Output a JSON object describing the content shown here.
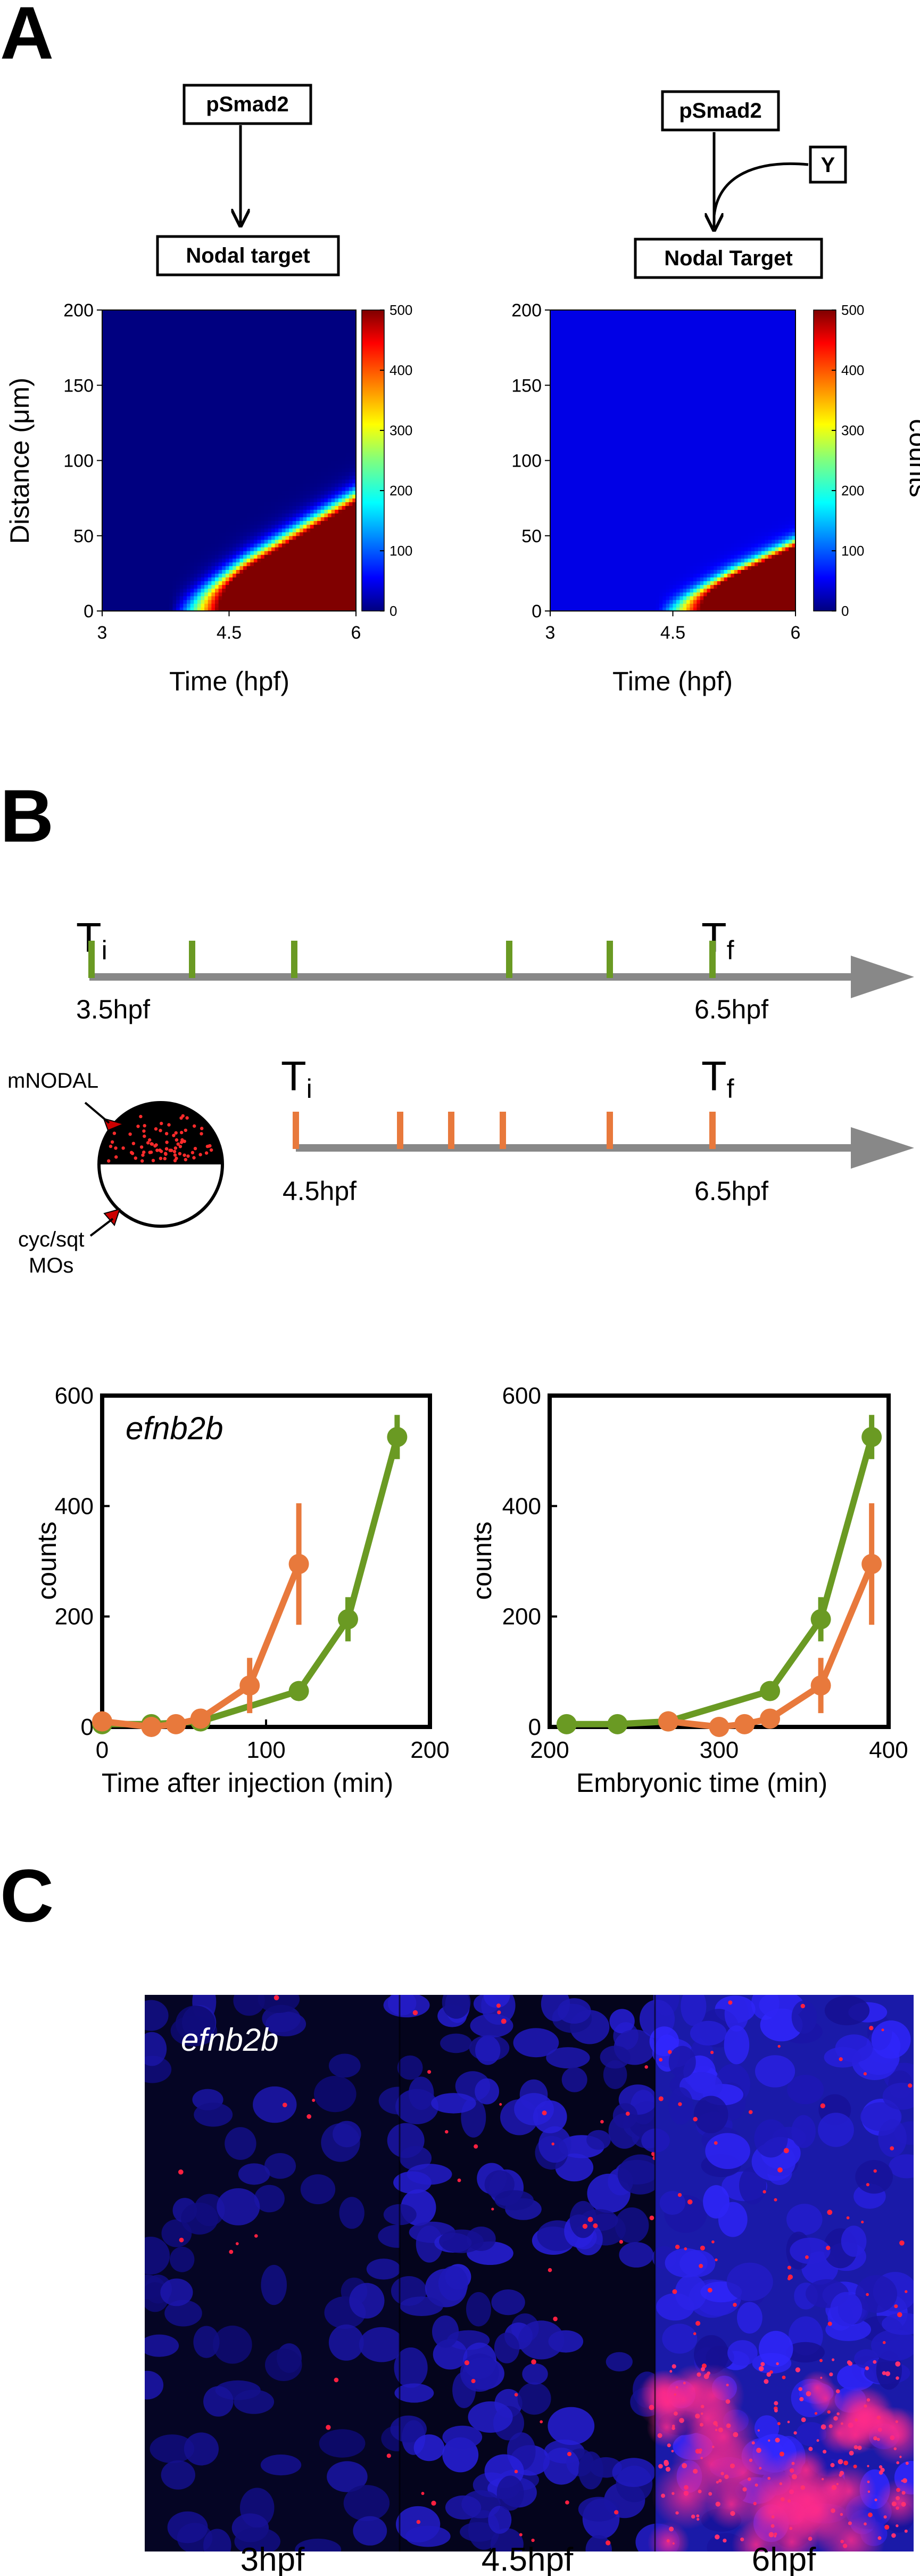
{
  "panels": {
    "a": "A",
    "b": "B",
    "c": "C"
  },
  "panel_a": {
    "left_diagram": {
      "top_box": "pSmad2",
      "bottom_box": "Nodal target"
    },
    "right_diagram": {
      "top_box": "pSmad2",
      "side_box": "Y",
      "bottom_box": "Nodal Target"
    },
    "ylabel": "Distance (μm)",
    "colorbar_label": "counts"
  },
  "panel_b": {
    "timeline_green": {
      "ti": "T",
      "ti_sub": "i",
      "tf": "T",
      "tf_sub": "f",
      "start": "3.5hpf",
      "end": "6.5hpf",
      "color": "#6a9a23"
    },
    "timeline_orange": {
      "ti": "T",
      "ti_sub": "i",
      "tf": "T",
      "tf_sub": "f",
      "start": "4.5hpf",
      "end": "6.5hpf",
      "color": "#e8793c"
    },
    "schematic": {
      "label1": "mNODAL",
      "label2a": "cyc/sqt",
      "label2b": "MOs"
    }
  },
  "panel_c": {
    "gene": "efnb2b",
    "labels": [
      "3hpf",
      "4.5hpf",
      "6hpf"
    ]
  },
  "chart_data": [
    {
      "type": "heatmap",
      "title": "Nodal target",
      "xlabel": "Time (hpf)",
      "ylabel": "Distance (μm)",
      "xlim": [
        3,
        6
      ],
      "ylim": [
        0,
        200
      ],
      "xticks": [
        "3",
        "4.5",
        "6"
      ],
      "yticks": [
        "0",
        "50",
        "100",
        "150",
        "200"
      ],
      "colorbar": {
        "min": 0,
        "max": 500,
        "ticks": [
          "0",
          "100",
          "200",
          "300",
          "400",
          "500"
        ],
        "colormap": "jet"
      },
      "model": {
        "front_start_hpf": 3.8,
        "front_speed_um_per_hpf": 34,
        "width_um": 18
      }
    },
    {
      "type": "heatmap",
      "title": "Nodal Target",
      "xlabel": "Time (hpf)",
      "ylabel": "Distance (μm)",
      "xlim": [
        3,
        6
      ],
      "ylim": [
        0,
        200
      ],
      "xticks": [
        "3",
        "4.5",
        "6"
      ],
      "yticks": [
        "0",
        "50",
        "100",
        "150",
        "200"
      ],
      "colorbar": {
        "min": 0,
        "max": 500,
        "ticks": [
          "0",
          "100",
          "200",
          "300",
          "400",
          "500"
        ],
        "colormap": "jet",
        "label": "counts"
      },
      "model": {
        "front_start_hpf": 4.3,
        "front_speed_um_per_hpf": 26,
        "width_um": 12
      }
    },
    {
      "type": "line",
      "gene": "efnb2b",
      "xlabel": "Time after injection (min)",
      "ylabel": "counts",
      "xlim": [
        0,
        200
      ],
      "ylim": [
        0,
        600
      ],
      "xticks": [
        0,
        100,
        200
      ],
      "yticks": [
        0,
        200,
        400,
        600
      ],
      "series": [
        {
          "name": "injection 3.5hpf",
          "color": "#6a9a23",
          "x": [
            0,
            30,
            60,
            120,
            150,
            180
          ],
          "y": [
            5,
            5,
            10,
            65,
            195,
            525
          ],
          "err": [
            10,
            8,
            10,
            15,
            40,
            40
          ]
        },
        {
          "name": "injection 4.5hpf",
          "color": "#e8793c",
          "x": [
            0,
            30,
            45,
            60,
            90,
            120
          ],
          "y": [
            10,
            0,
            5,
            15,
            75,
            295
          ],
          "err": [
            10,
            8,
            8,
            10,
            50,
            110
          ]
        }
      ]
    },
    {
      "type": "line",
      "xlabel": "Embryonic time (min)",
      "ylabel": "counts",
      "xlim": [
        200,
        400
      ],
      "ylim": [
        0,
        600
      ],
      "xticks": [
        200,
        300,
        400
      ],
      "yticks": [
        0,
        200,
        400,
        600
      ],
      "series": [
        {
          "name": "injection 3.5hpf",
          "color": "#6a9a23",
          "x": [
            210,
            240,
            270,
            330,
            360,
            390
          ],
          "y": [
            5,
            5,
            10,
            65,
            195,
            525
          ],
          "err": [
            10,
            8,
            10,
            15,
            40,
            40
          ]
        },
        {
          "name": "injection 4.5hpf",
          "color": "#e8793c",
          "x": [
            270,
            300,
            315,
            330,
            360,
            390
          ],
          "y": [
            10,
            0,
            5,
            15,
            75,
            295
          ],
          "err": [
            10,
            8,
            8,
            10,
            50,
            110
          ]
        }
      ]
    }
  ]
}
